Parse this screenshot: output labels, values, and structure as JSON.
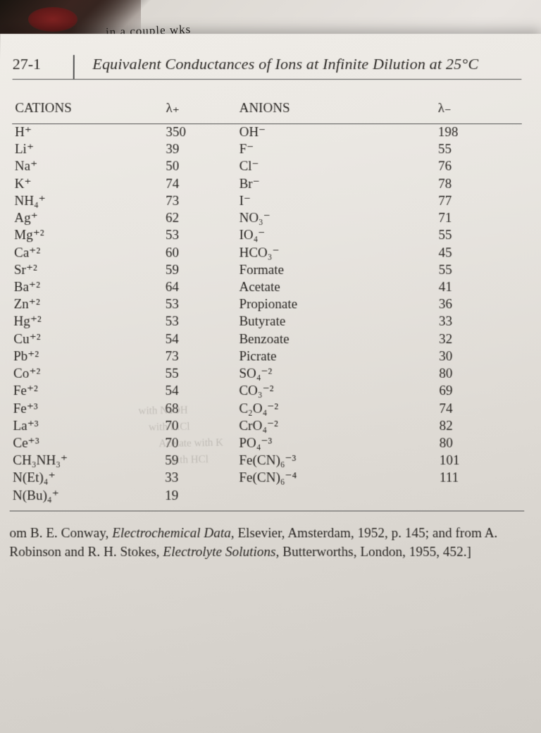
{
  "handwriting": "in a couple wks",
  "table_number": "27-1",
  "title": "Equivalent Conductances of Ions at Infinite Dilution at 25°C",
  "headers": {
    "cations": "CATIONS",
    "lambda_plus": "λ₊",
    "anions": "ANIONS",
    "lambda_minus": "λ₋"
  },
  "rows": [
    {
      "cation": "H⁺",
      "lp": "350",
      "anion": "OH⁻",
      "lm": "198"
    },
    {
      "cation": "Li⁺",
      "lp": "39",
      "anion": "F⁻",
      "lm": "55"
    },
    {
      "cation": "Na⁺",
      "lp": "50",
      "anion": "Cl⁻",
      "lm": "76"
    },
    {
      "cation": "K⁺",
      "lp": "74",
      "anion": "Br⁻",
      "lm": "78"
    },
    {
      "cation": "NH₄⁺",
      "lp": "73",
      "anion": "I⁻",
      "lm": "77"
    },
    {
      "cation": "Ag⁺",
      "lp": "62",
      "anion": "NO₃⁻",
      "lm": "71"
    },
    {
      "cation": "Mg⁺²",
      "lp": "53",
      "anion": "IO₄⁻",
      "lm": "55"
    },
    {
      "cation": "Ca⁺²",
      "lp": "60",
      "anion": "HCO₃⁻",
      "lm": "45"
    },
    {
      "cation": "Sr⁺²",
      "lp": "59",
      "anion": "Formate",
      "lm": "55"
    },
    {
      "cation": "Ba⁺²",
      "lp": "64",
      "anion": "Acetate",
      "lm": "41"
    },
    {
      "cation": "Zn⁺²",
      "lp": "53",
      "anion": "Propionate",
      "lm": "36"
    },
    {
      "cation": "Hg⁺²",
      "lp": "53",
      "anion": "Butyrate",
      "lm": "33"
    },
    {
      "cation": "Cu⁺²",
      "lp": "54",
      "anion": "Benzoate",
      "lm": "32"
    },
    {
      "cation": "Pb⁺²",
      "lp": "73",
      "anion": "Picrate",
      "lm": "30"
    },
    {
      "cation": "Co⁺²",
      "lp": "55",
      "anion": "SO₄⁻²",
      "lm": "80"
    },
    {
      "cation": "Fe⁺²",
      "lp": "54",
      "anion": "CO₃⁻²",
      "lm": "69"
    },
    {
      "cation": "Fe⁺³",
      "lp": "68",
      "anion": "C₂O₄⁻²",
      "lm": "74"
    },
    {
      "cation": "La⁺³",
      "lp": "70",
      "anion": "CrO₄⁻²",
      "lm": "82"
    },
    {
      "cation": "Ce⁺³",
      "lp": "70",
      "anion": "PO₄⁻³",
      "lm": "80"
    },
    {
      "cation": "CH₃NH₃⁺",
      "lp": "59",
      "anion": "Fe(CN)₆⁻³",
      "lm": "101"
    },
    {
      "cation": "N(Et)₄⁺",
      "lp": "33",
      "anion": "Fe(CN)₆⁻⁴",
      "lm": "111"
    },
    {
      "cation": "N(Bu)₄⁺",
      "lp": "19",
      "anion": "",
      "lm": ""
    }
  ],
  "citation_parts": {
    "prefix": "om B. E. Conway, ",
    "book1": "Electrochemical Data",
    "mid1": ", Elsevier, Amsterdam, 1952, p. 145; and from A. Robinson and R. H. Stokes, ",
    "book2": "Electrolyte Solutions",
    "suffix": ", Butterworths, London, 1955, 452.]"
  },
  "smear_lines": [
    "with NaOH",
    "with LiCl",
    "Acetate with K",
    "with HCl"
  ],
  "colors": {
    "text": "#2a2724",
    "rule": "#555555",
    "page_top": "#f0ede8",
    "page_bottom": "#d0ccc6",
    "bg": "#e8e4e0"
  },
  "typography": {
    "title_fontsize_pt": 17,
    "body_fontsize_pt": 14,
    "font_family": "Times New Roman"
  }
}
